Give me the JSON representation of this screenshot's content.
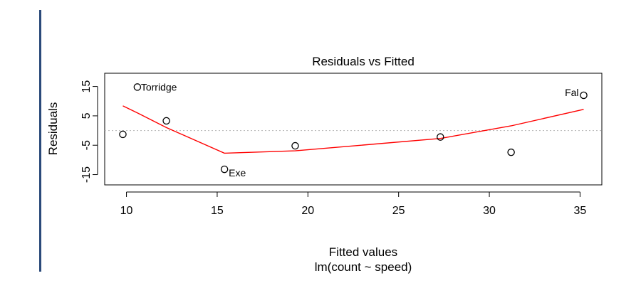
{
  "chart_data": {
    "type": "scatter",
    "title": "Residuals vs Fitted",
    "xlabel": "Fitted values",
    "subtitle": "lm(count ~ speed)",
    "ylabel": "Residuals",
    "xlim": [
      8.8,
      36.2
    ],
    "ylim": [
      -18.5,
      19.5
    ],
    "x_ticks": [
      10,
      15,
      20,
      25,
      30,
      35
    ],
    "y_ticks": [
      -15,
      -5,
      5,
      15
    ],
    "grid": false,
    "reference_line": {
      "y": 0,
      "style": "dotted",
      "color": "#bdbdbd"
    },
    "points": [
      {
        "x": 9.8,
        "y": -1.3,
        "label": ""
      },
      {
        "x": 10.6,
        "y": 14.8,
        "label": "Torridge"
      },
      {
        "x": 12.2,
        "y": 3.3,
        "label": ""
      },
      {
        "x": 15.4,
        "y": -13.2,
        "label": "Exe"
      },
      {
        "x": 19.3,
        "y": -5.2,
        "label": ""
      },
      {
        "x": 27.3,
        "y": -2.2,
        "label": ""
      },
      {
        "x": 31.2,
        "y": -7.4,
        "label": ""
      },
      {
        "x": 35.2,
        "y": 12.0,
        "label": "Fal"
      }
    ],
    "smooth": {
      "color": "#ff0000",
      "x": [
        9.8,
        10.6,
        12.2,
        15.4,
        19.3,
        27.3,
        31.2,
        35.2
      ],
      "y": [
        8.4,
        6.0,
        1.0,
        -7.7,
        -6.9,
        -2.7,
        1.6,
        7.2
      ]
    }
  },
  "page": {
    "left_rule_color": "#2b4a7a"
  }
}
